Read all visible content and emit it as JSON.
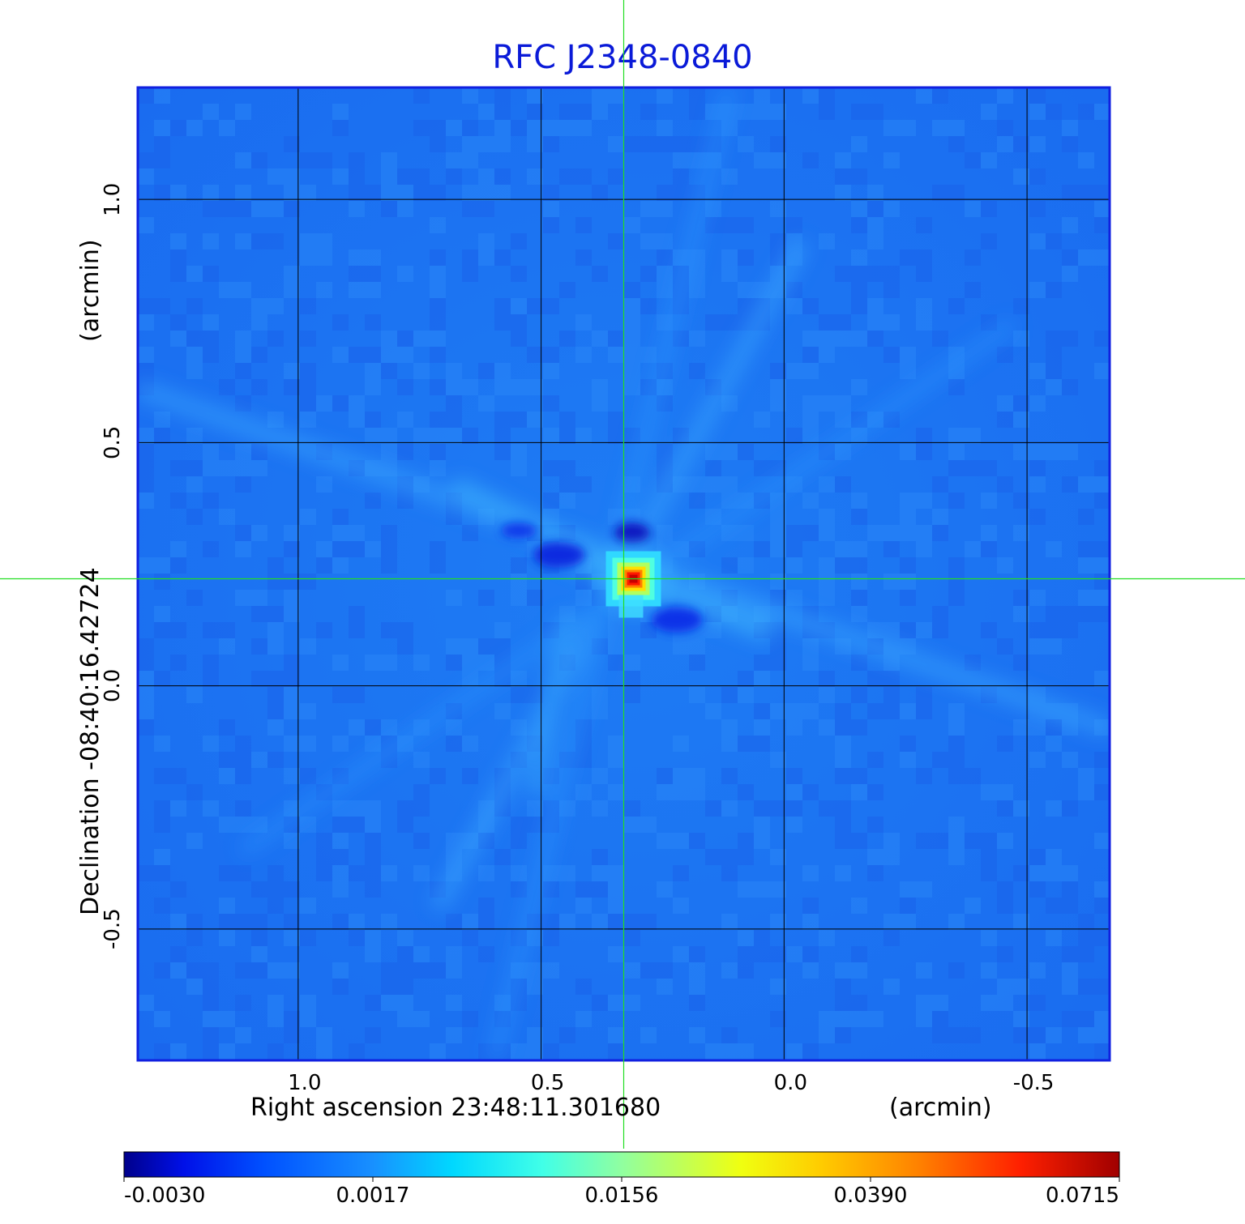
{
  "chart_data": {
    "type": "heatmap",
    "title": "RFC J2348-0840",
    "xlabel": "Right ascension  23:48:11.301680",
    "xunit": "(arcmin)",
    "ylabel": "Declination  -08:40:16.42724",
    "yunit": "(arcmin)",
    "x_ticks": [
      "1.0",
      "0.5",
      "0.0",
      "-0.5"
    ],
    "x_tick_values": [
      1.0,
      0.5,
      0.0,
      -0.5
    ],
    "y_ticks": [
      "1.0",
      "0.5",
      "0.0",
      "-0.5"
    ],
    "y_tick_values": [
      1.0,
      0.5,
      0.0,
      -0.5
    ],
    "xlim": [
      1.33,
      -0.67
    ],
    "ylim": [
      -0.77,
      1.23
    ],
    "xaxis_reversed": true,
    "grid": true,
    "crosshair": {
      "x": 0.33,
      "y": 0.22,
      "color": "#22dd22"
    },
    "source_peak": {
      "x": 0.31,
      "y": 0.22,
      "value": 0.0715
    },
    "colorbar": {
      "colormap": "jet",
      "tick_labels": [
        "-0.0030",
        "0.0017",
        "0.0156",
        "0.0390",
        "0.0715"
      ],
      "tick_values": [
        -0.003,
        0.0017,
        0.0156,
        0.039,
        0.0715
      ],
      "range": [
        -0.003,
        0.0715
      ]
    }
  }
}
